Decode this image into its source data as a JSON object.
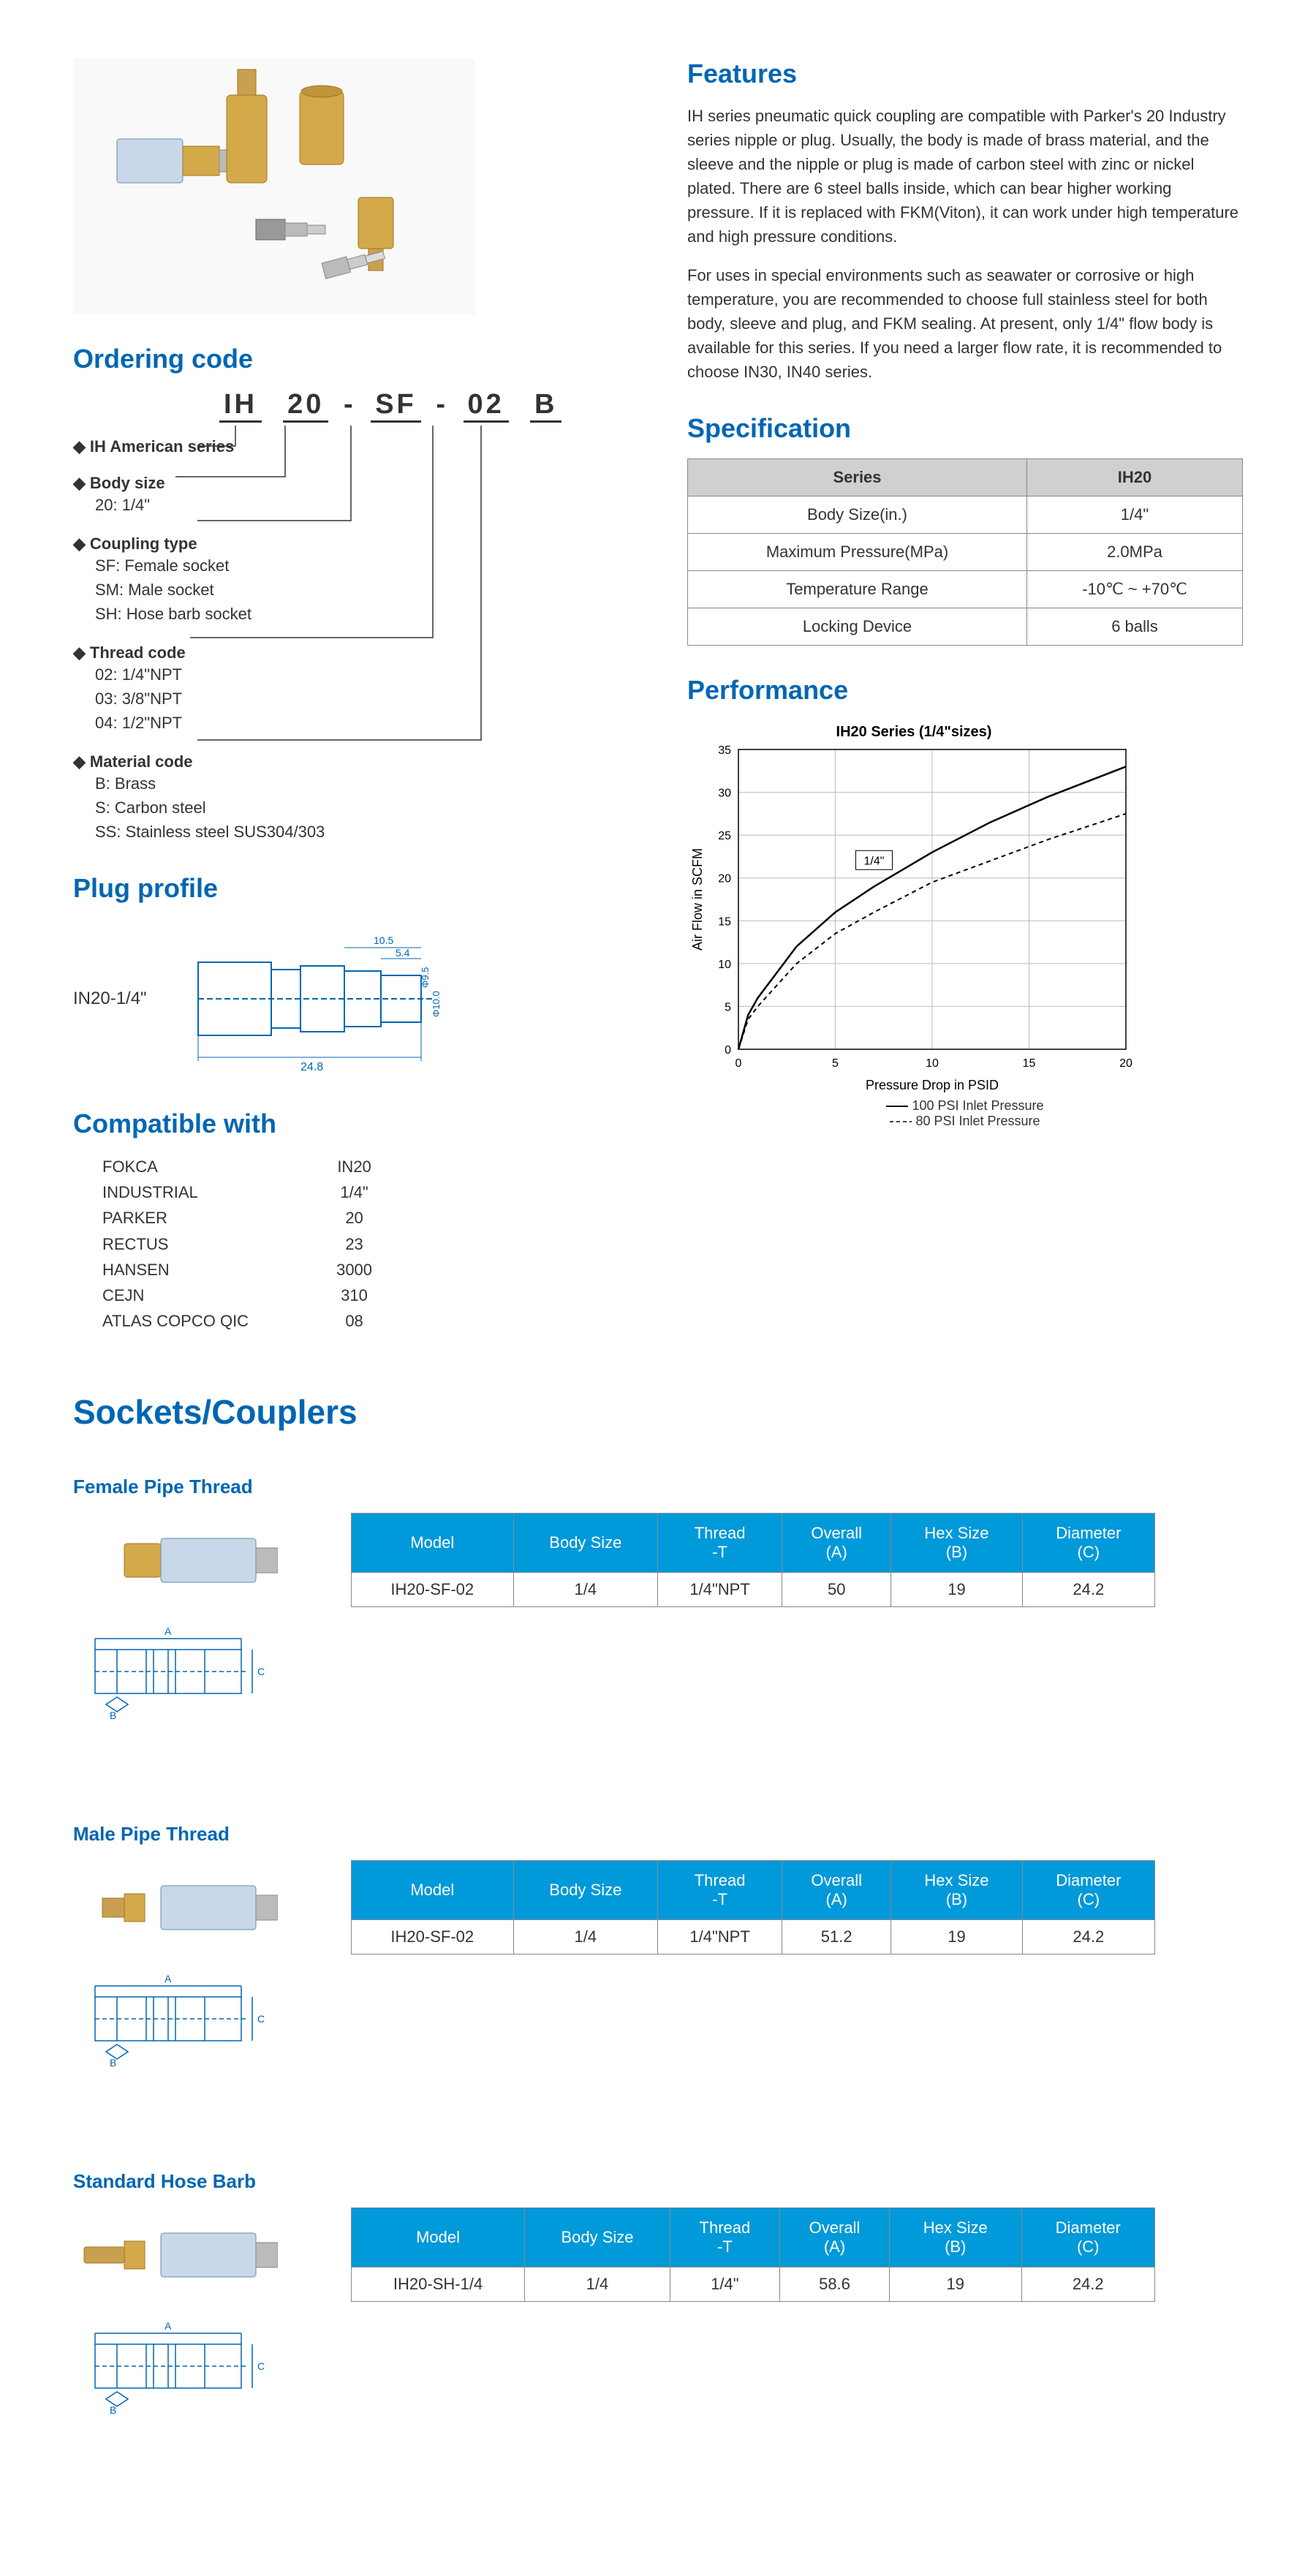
{
  "features": {
    "title": "Features",
    "p1": "IH series pneumatic quick coupling are compatible with Parker's 20 Industry series nipple or plug. Usually, the body is made of brass material, and the sleeve and the nipple or plug is made of carbon steel with zinc or nickel plated. There are 6 steel balls inside, which can bear higher working pressure. If it is replaced with FKM(Viton), it can work under high temperature and high pressure conditions.",
    "p2": "For uses in special environments such as seawater or corrosive or high temperature, you are recommended to choose full stainless steel for both body, sleeve and plug, and FKM sealing. At present, only 1/4\" flow body is available for this series. If you need a larger flow rate, it is recommended to choose IN30, IN40 series."
  },
  "ordering": {
    "title": "Ordering code",
    "parts": [
      "IH",
      "20",
      "-",
      "SF",
      "-",
      "02",
      "B"
    ],
    "items": [
      {
        "label": "IH American series",
        "subs": []
      },
      {
        "label": "Body size",
        "subs": [
          "20: 1/4\""
        ]
      },
      {
        "label": "Coupling type",
        "subs": [
          "SF: Female socket",
          "SM: Male socket",
          "SH: Hose barb socket"
        ]
      },
      {
        "label": "Thread code",
        "subs": [
          "02: 1/4\"NPT",
          "03: 3/8\"NPT",
          "04: 1/2\"NPT"
        ]
      },
      {
        "label": "Material code",
        "subs": [
          "B: Brass",
          "S: Carbon steel",
          "SS: Stainless steel SUS304/303"
        ]
      }
    ]
  },
  "specification": {
    "title": "Specification",
    "header": [
      "Series",
      "IH20"
    ],
    "rows": [
      [
        "Body Size(in.)",
        "1/4\""
      ],
      [
        "Maximum Pressure(MPa)",
        "2.0MPa"
      ],
      [
        "Temperature Range",
        "-10℃ ~ +70℃"
      ],
      [
        "Locking Device",
        "6 balls"
      ]
    ]
  },
  "plug": {
    "title": "Plug profile",
    "label": "IN20-1/4\"",
    "dims": {
      "length_total": "24.8",
      "seg1": "10.5",
      "seg2": "5.4",
      "dia1": "Φ9.5",
      "dia2": "Φ10.0"
    }
  },
  "compat": {
    "title": "Compatible with",
    "names": [
      "FOKCA",
      "INDUSTRIAL",
      "PARKER",
      "RECTUS",
      "HANSEN",
      "CEJN",
      "ATLAS COPCO QIC"
    ],
    "vals": [
      "IN20",
      "1/4\"",
      "20",
      "23",
      "3000",
      "310",
      "08"
    ]
  },
  "performance": {
    "title": "Performance",
    "chart_title": "IH20 Series (1/4\"sizes)",
    "xlabel": "Pressure Drop in PSID",
    "ylabel": "Air Flow in SCFM",
    "series_label": "1/4\"",
    "legend1": "100 PSI Inlet Pressure",
    "legend2": "80 PSI Inlet Pressure",
    "xlim": [
      0,
      20
    ],
    "ylim": [
      0,
      35
    ],
    "xtick_step": 5,
    "ytick_step": 5,
    "series1": [
      [
        0,
        0
      ],
      [
        0.5,
        4
      ],
      [
        1,
        6
      ],
      [
        2,
        9
      ],
      [
        3,
        12
      ],
      [
        5,
        16
      ],
      [
        7,
        19
      ],
      [
        10,
        23
      ],
      [
        13,
        26.5
      ],
      [
        16,
        29.5
      ],
      [
        20,
        33
      ]
    ],
    "series2": [
      [
        0,
        0
      ],
      [
        0.5,
        3.5
      ],
      [
        1,
        5
      ],
      [
        2,
        7.5
      ],
      [
        3,
        10
      ],
      [
        5,
        13.5
      ],
      [
        7,
        16
      ],
      [
        10,
        19.5
      ],
      [
        13,
        22
      ],
      [
        16,
        24.5
      ],
      [
        20,
        27.5
      ]
    ],
    "colors": {
      "line": "#000",
      "grid": "#bbb",
      "bg": "#fff"
    }
  },
  "sockets": {
    "title": "Sockets/Couplers",
    "table_headers": [
      "Model",
      "Body Size",
      "Thread -T",
      "Overall (A)",
      "Hex Size (B)",
      "Diameter (C)"
    ],
    "blocks": [
      {
        "title": "Female Pipe Thread",
        "rows": [
          [
            "IH20-SF-02",
            "1/4",
            "1/4\"NPT",
            "50",
            "19",
            "24.2"
          ]
        ]
      },
      {
        "title": "Male Pipe Thread",
        "rows": [
          [
            "IH20-SF-02",
            "1/4",
            "1/4\"NPT",
            "51.2",
            "19",
            "24.2"
          ]
        ]
      },
      {
        "title": "Standard Hose Barb",
        "rows": [
          [
            "IH20-SH-1/4",
            "1/4",
            "1/4\"",
            "58.6",
            "19",
            "24.2"
          ]
        ]
      }
    ]
  }
}
